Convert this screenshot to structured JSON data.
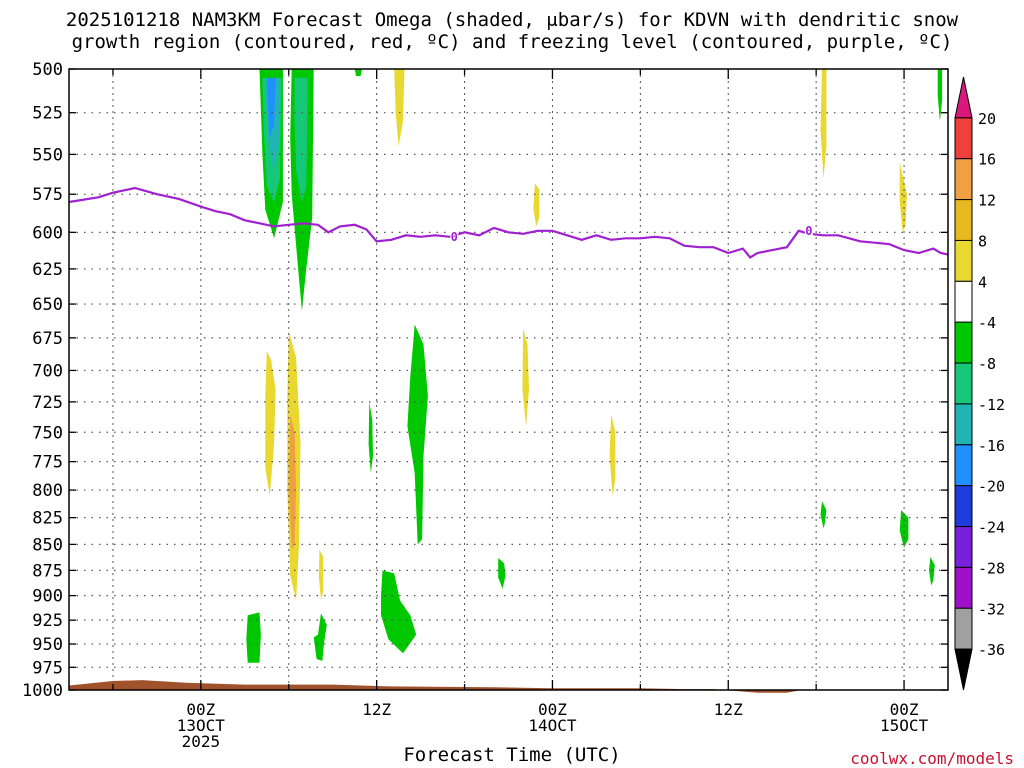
{
  "title": {
    "line1": "2025101218 NAM3KM Forecast Omega (shaded, μbar/s) for KDVN with dendritic snow",
    "line2": "growth region (contoured, red, ºC) and freezing level (contoured, purple, ºC)"
  },
  "credit": "coolwx.com/models",
  "colors": {
    "background": "#ffffff",
    "grid": "#555555",
    "terrain": "#a0522d",
    "freezing_line": "#a020d0",
    "credit": "#c8102e"
  },
  "chart_data": {
    "type": "heatmap",
    "title": "2025101218 NAM3KM Forecast Omega (shaded, μbar/s) for KDVN with dendritic snow growth region (contoured, red, ºC) and freezing level (contoured, purple, ºC)",
    "xlabel": "Forecast Time (UTC)",
    "ylabel": "",
    "xlim_hours": [
      -9,
      51
    ],
    "ylim": [
      500,
      1000
    ],
    "y_scale": "log-pressure",
    "grid": true,
    "y_ticks": [
      500,
      525,
      550,
      575,
      600,
      625,
      650,
      675,
      700,
      725,
      750,
      775,
      800,
      825,
      850,
      875,
      900,
      925,
      950,
      975,
      1000
    ],
    "x_ticks": [
      {
        "hour": 0,
        "labels": [
          "00Z",
          "13OCT",
          "2025"
        ]
      },
      {
        "hour": 12,
        "labels": [
          "12Z"
        ]
      },
      {
        "hour": 24,
        "labels": [
          "00Z",
          "14OCT"
        ]
      },
      {
        "hour": 36,
        "labels": [
          "12Z"
        ]
      },
      {
        "hour": 48,
        "labels": [
          "00Z",
          "15OCT"
        ]
      }
    ],
    "colorbar": {
      "levels": [
        {
          "label": "",
          "color": "#d8187a",
          "shape": "top-triangle"
        },
        {
          "label": "20",
          "color": "#f0403c"
        },
        {
          "label": "16",
          "color": "#f0a040"
        },
        {
          "label": "12",
          "color": "#e8b820"
        },
        {
          "label": "8",
          "color": "#e8d830"
        },
        {
          "label": "4",
          "color": "#ffffff"
        },
        {
          "label": "-4",
          "color": "#00c800"
        },
        {
          "label": "-8",
          "color": "#14c878"
        },
        {
          "label": "-12",
          "color": "#20b4b4"
        },
        {
          "label": "-16",
          "color": "#1e90ff"
        },
        {
          "label": "-20",
          "color": "#1e3cdc"
        },
        {
          "label": "-24",
          "color": "#7820dc"
        },
        {
          "label": "-28",
          "color": "#a010c8"
        },
        {
          "label": "-32",
          "color": "#a0a0a0"
        },
        {
          "label": "-36",
          "color": "#000000",
          "shape": "bottom-triangle"
        }
      ]
    },
    "freezing_level": {
      "label": "0",
      "points": [
        [
          -9,
          580
        ],
        [
          -7,
          577
        ],
        [
          -6,
          574
        ],
        [
          -4.5,
          571
        ],
        [
          -3,
          575
        ],
        [
          -1.5,
          578
        ],
        [
          0,
          583
        ],
        [
          1,
          586
        ],
        [
          2,
          588
        ],
        [
          3,
          592
        ],
        [
          4,
          594
        ],
        [
          5,
          596
        ],
        [
          6,
          595
        ],
        [
          7,
          594
        ],
        [
          8,
          595
        ],
        [
          8.7,
          600
        ],
        [
          9.5,
          596
        ],
        [
          10.5,
          595
        ],
        [
          11.3,
          598
        ],
        [
          12,
          606
        ],
        [
          13,
          605
        ],
        [
          14,
          602
        ],
        [
          15,
          603
        ],
        [
          16,
          602
        ],
        [
          17,
          603
        ],
        [
          18,
          600
        ],
        [
          19,
          602
        ],
        [
          20,
          597
        ],
        [
          21,
          600
        ],
        [
          22,
          601
        ],
        [
          23,
          599
        ],
        [
          24,
          599
        ],
        [
          25,
          602
        ],
        [
          26,
          605
        ],
        [
          27,
          602
        ],
        [
          28,
          605
        ],
        [
          29,
          604
        ],
        [
          30,
          604
        ],
        [
          31,
          603
        ],
        [
          32,
          604
        ],
        [
          33,
          609
        ],
        [
          34,
          610
        ],
        [
          35,
          610
        ],
        [
          36,
          614
        ],
        [
          37,
          611
        ],
        [
          37.5,
          617
        ],
        [
          38,
          614
        ],
        [
          39,
          612
        ],
        [
          40,
          610
        ],
        [
          40.8,
          599
        ],
        [
          41.5,
          601
        ],
        [
          42.5,
          602
        ],
        [
          43.5,
          602
        ],
        [
          45,
          606
        ],
        [
          46,
          607
        ],
        [
          47,
          608
        ],
        [
          48,
          612
        ],
        [
          49,
          614
        ],
        [
          50,
          611
        ],
        [
          50.5,
          614
        ],
        [
          51,
          615
        ]
      ]
    },
    "omega_regions": [
      {
        "color": "#00c800",
        "pts": [
          [
            4,
            500
          ],
          [
            5.6,
            500
          ],
          [
            5.6,
            580
          ],
          [
            5.0,
            604
          ],
          [
            4.4,
            585
          ],
          [
            4.2,
            550
          ]
        ]
      },
      {
        "color": "#14c878",
        "pts": [
          [
            4.2,
            505
          ],
          [
            5.5,
            505
          ],
          [
            5.4,
            565
          ],
          [
            5.0,
            580
          ],
          [
            4.5,
            570
          ],
          [
            4.3,
            535
          ]
        ]
      },
      {
        "color": "#20b4b4",
        "pts": [
          [
            4.4,
            505
          ],
          [
            5.4,
            505
          ],
          [
            5.3,
            545
          ],
          [
            4.9,
            560
          ],
          [
            4.6,
            540
          ]
        ]
      },
      {
        "color": "#1e90ff",
        "pts": [
          [
            4.5,
            505
          ],
          [
            5.1,
            505
          ],
          [
            5.0,
            532
          ],
          [
            4.7,
            540
          ],
          [
            4.6,
            525
          ]
        ]
      },
      {
        "color": "#00c800",
        "pts": [
          [
            6.2,
            500
          ],
          [
            7.7,
            500
          ],
          [
            7.6,
            590
          ],
          [
            7.2,
            625
          ],
          [
            6.9,
            655
          ],
          [
            6.6,
            620
          ],
          [
            6.2,
            575
          ],
          [
            6.1,
            540
          ]
        ]
      },
      {
        "color": "#14c878",
        "pts": [
          [
            6.4,
            505
          ],
          [
            7.3,
            505
          ],
          [
            7.2,
            570
          ],
          [
            6.9,
            580
          ],
          [
            6.5,
            560
          ],
          [
            6.4,
            530
          ]
        ]
      },
      {
        "color": "#00c800",
        "pts": [
          [
            10.5,
            500
          ],
          [
            11.0,
            500
          ],
          [
            10.9,
            504
          ],
          [
            10.6,
            504
          ]
        ]
      },
      {
        "color": "#e8d830",
        "pts": [
          [
            13.2,
            500
          ],
          [
            13.9,
            500
          ],
          [
            13.8,
            530
          ],
          [
            13.5,
            545
          ],
          [
            13.3,
            525
          ]
        ]
      },
      {
        "color": "#e8d830",
        "pts": [
          [
            22.8,
            568
          ],
          [
            23.1,
            572
          ],
          [
            23.1,
            590
          ],
          [
            22.9,
            596
          ],
          [
            22.7,
            585
          ]
        ]
      },
      {
        "color": "#e8d830",
        "pts": [
          [
            42.4,
            500
          ],
          [
            42.7,
            500
          ],
          [
            42.7,
            545
          ],
          [
            42.5,
            565
          ],
          [
            42.3,
            535
          ]
        ]
      },
      {
        "color": "#e8d830",
        "pts": [
          [
            47.7,
            555
          ],
          [
            48.2,
            575
          ],
          [
            48.1,
            595
          ],
          [
            47.9,
            600
          ],
          [
            47.7,
            580
          ]
        ]
      },
      {
        "color": "#00c800",
        "pts": [
          [
            50.3,
            500
          ],
          [
            50.6,
            500
          ],
          [
            50.6,
            518
          ],
          [
            50.45,
            530
          ],
          [
            50.3,
            515
          ]
        ]
      },
      {
        "color": "#e8d830",
        "pts": [
          [
            4.5,
            685
          ],
          [
            4.8,
            692
          ],
          [
            5.1,
            715
          ],
          [
            5.0,
            760
          ],
          [
            4.7,
            805
          ],
          [
            4.4,
            780
          ],
          [
            4.4,
            720
          ]
        ]
      },
      {
        "color": "#e8d830",
        "pts": [
          [
            6.0,
            670
          ],
          [
            6.5,
            690
          ],
          [
            6.8,
            760
          ],
          [
            6.7,
            850
          ],
          [
            6.5,
            905
          ],
          [
            6.1,
            880
          ],
          [
            5.9,
            800
          ],
          [
            5.9,
            720
          ]
        ]
      },
      {
        "color": "#f0a040",
        "pts": [
          [
            6.1,
            735
          ],
          [
            6.4,
            750
          ],
          [
            6.5,
            800
          ],
          [
            6.4,
            850
          ],
          [
            6.2,
            855
          ],
          [
            6.0,
            800
          ]
        ]
      },
      {
        "color": "#e8d830",
        "pts": [
          [
            8.1,
            855
          ],
          [
            8.35,
            862
          ],
          [
            8.35,
            895
          ],
          [
            8.2,
            905
          ],
          [
            8.05,
            880
          ]
        ]
      },
      {
        "color": "#00c800",
        "pts": [
          [
            11.5,
            725
          ],
          [
            11.7,
            740
          ],
          [
            11.75,
            770
          ],
          [
            11.6,
            785
          ],
          [
            11.45,
            760
          ]
        ]
      },
      {
        "color": "#00c800",
        "pts": [
          [
            14.6,
            665
          ],
          [
            15.2,
            680
          ],
          [
            15.5,
            720
          ],
          [
            15.2,
            770
          ],
          [
            15.1,
            845
          ],
          [
            14.8,
            850
          ],
          [
            14.6,
            785
          ],
          [
            14.1,
            745
          ],
          [
            14.3,
            705
          ]
        ]
      },
      {
        "color": "#e8d830",
        "pts": [
          [
            22.0,
            668
          ],
          [
            22.3,
            680
          ],
          [
            22.4,
            715
          ],
          [
            22.2,
            745
          ],
          [
            21.95,
            715
          ]
        ]
      },
      {
        "color": "#e8d830",
        "pts": [
          [
            28.0,
            735
          ],
          [
            28.3,
            750
          ],
          [
            28.3,
            790
          ],
          [
            28.1,
            805
          ],
          [
            27.9,
            770
          ]
        ]
      },
      {
        "color": "#00c800",
        "pts": [
          [
            20.3,
            863
          ],
          [
            20.7,
            868
          ],
          [
            20.8,
            880
          ],
          [
            20.6,
            893
          ],
          [
            20.3,
            882
          ]
        ]
      },
      {
        "color": "#00c800",
        "pts": [
          [
            42.4,
            810
          ],
          [
            42.7,
            818
          ],
          [
            42.6,
            830
          ],
          [
            42.5,
            835
          ],
          [
            42.3,
            822
          ]
        ]
      },
      {
        "color": "#00c800",
        "pts": [
          [
            47.8,
            818
          ],
          [
            48.3,
            825
          ],
          [
            48.3,
            845
          ],
          [
            48.0,
            853
          ],
          [
            47.7,
            837
          ]
        ]
      },
      {
        "color": "#00c800",
        "pts": [
          [
            49.8,
            862
          ],
          [
            50.1,
            870
          ],
          [
            50.0,
            885
          ],
          [
            49.85,
            890
          ],
          [
            49.7,
            875
          ]
        ]
      },
      {
        "color": "#00c800",
        "pts": [
          [
            3.2,
            920
          ],
          [
            4.0,
            917
          ],
          [
            4.1,
            940
          ],
          [
            4.0,
            970
          ],
          [
            3.2,
            970
          ],
          [
            3.1,
            945
          ]
        ]
      },
      {
        "color": "#00c800",
        "pts": [
          [
            8.2,
            918
          ],
          [
            8.6,
            930
          ],
          [
            8.4,
            950
          ],
          [
            8.3,
            968
          ],
          [
            7.9,
            966
          ],
          [
            7.7,
            943
          ],
          [
            8.0,
            940
          ]
        ]
      },
      {
        "color": "#00c800",
        "pts": [
          [
            12.4,
            875
          ],
          [
            13.2,
            878
          ],
          [
            13.6,
            905
          ],
          [
            14.3,
            920
          ],
          [
            14.7,
            940
          ],
          [
            13.8,
            960
          ],
          [
            12.8,
            945
          ],
          [
            12.3,
            920
          ],
          [
            12.3,
            900
          ]
        ]
      }
    ],
    "terrain": [
      [
        -9,
        995
      ],
      [
        -6,
        990
      ],
      [
        -4,
        989
      ],
      [
        -1,
        992
      ],
      [
        3,
        994
      ],
      [
        9,
        994
      ],
      [
        13,
        996
      ],
      [
        20,
        997
      ],
      [
        24,
        998
      ],
      [
        30,
        998
      ],
      [
        33,
        999
      ],
      [
        35,
        999
      ],
      [
        38,
        1003
      ],
      [
        40,
        1003
      ],
      [
        41,
        1000
      ],
      [
        51,
        1000
      ]
    ]
  }
}
